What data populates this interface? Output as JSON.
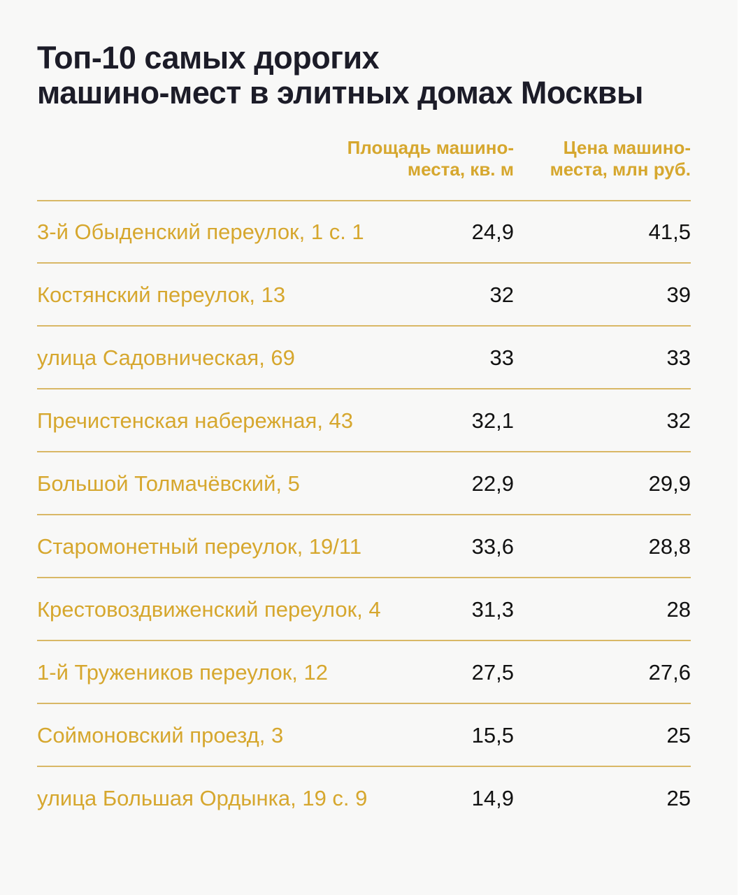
{
  "chart_data": {
    "type": "table",
    "title": "Топ-10 самых дорогих машино-мест в элитных домах Москвы",
    "columns": [
      "",
      "Площадь машино-места, кв. м",
      "Цена машино-места, млн руб."
    ],
    "rows": [
      {
        "address": "3-й Обыденский переулок, 1 с. 1",
        "area": "24,9",
        "price": "41,5"
      },
      {
        "address": "Костянский переулок, 13",
        "area": "32",
        "price": "39"
      },
      {
        "address": "улица Садовническая, 69",
        "area": "33",
        "price": "33"
      },
      {
        "address": "Пречистенская набережная, 43",
        "area": "32,1",
        "price": "32"
      },
      {
        "address": "Большой Толмачёвский, 5",
        "area": "22,9",
        "price": "29,9"
      },
      {
        "address": "Старомонетный переулок, 19/11",
        "area": "33,6",
        "price": "28,8"
      },
      {
        "address": "Крестовоздвиженский переулок, 4",
        "area": "31,3",
        "price": "28"
      },
      {
        "address": "1-й Тружеников переулок, 12",
        "area": "27,5",
        "price": "27,6"
      },
      {
        "address": "Соймоновский проезд, 3",
        "area": "15,5",
        "price": "25"
      },
      {
        "address": "улица Большая Ордынка, 19 с. 9",
        "area": "14,9",
        "price": "25"
      }
    ]
  },
  "header": {
    "title_line1": "Топ-10 самых дорогих",
    "title_line2": "машино-мест в элитных домах Москвы",
    "col1_line1": "Площадь машино-",
    "col1_line2": "места, кв. м",
    "col2_line1": "Цена машино-",
    "col2_line2": "места, млн руб."
  },
  "colors": {
    "accent": "#d6a72e",
    "title": "#1c1c28",
    "rule": "#d9b866",
    "background": "#f8f8f7"
  }
}
